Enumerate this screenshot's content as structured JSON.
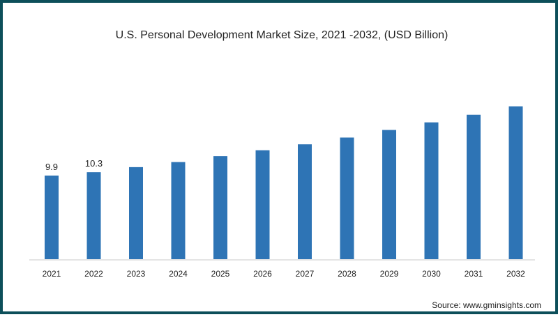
{
  "chart_data": {
    "type": "bar",
    "title": "U.S. Personal Development Market Size, 2021 -2032, (USD Billion)",
    "xlabel": "",
    "ylabel": "",
    "categories": [
      "2021",
      "2022",
      "2023",
      "2024",
      "2025",
      "2026",
      "2027",
      "2028",
      "2029",
      "2030",
      "2031",
      "2032"
    ],
    "values": [
      9.9,
      10.3,
      10.9,
      11.5,
      12.2,
      12.9,
      13.6,
      14.4,
      15.3,
      16.2,
      17.1,
      18.1
    ],
    "data_labels": [
      "9.9",
      "10.3",
      "",
      "",
      "",
      "",
      "",
      "",
      "",
      "",
      "",
      ""
    ],
    "ylim": [
      0,
      22
    ],
    "bar_color": "#2e74b5",
    "grid": false,
    "legend": "none"
  },
  "source": "Source: www.gminsights.com",
  "colors": {
    "frame": "#0d4f5a"
  }
}
